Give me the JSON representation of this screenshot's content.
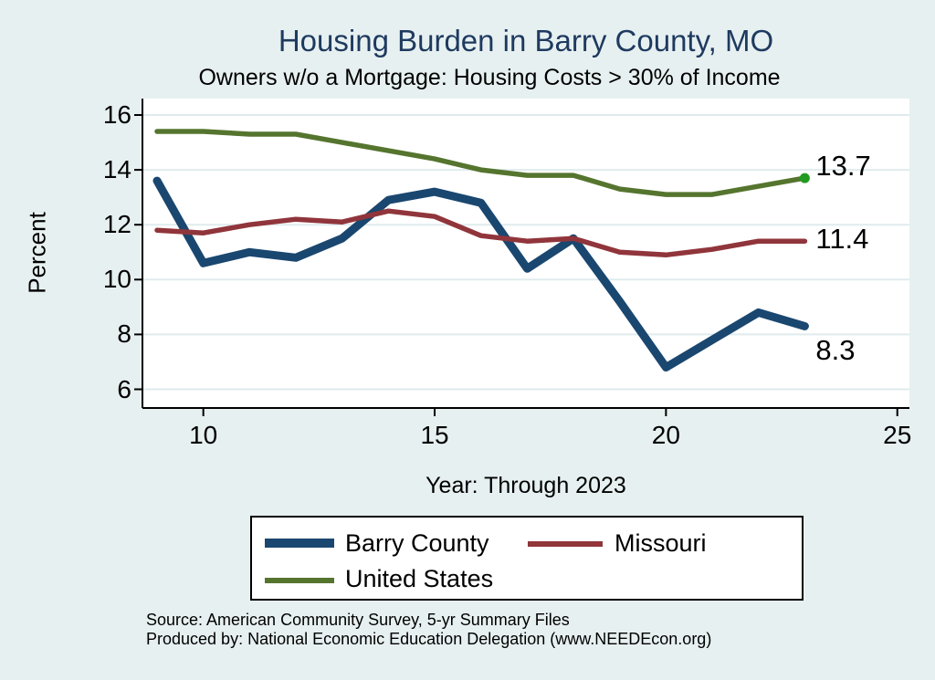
{
  "chart_data": {
    "type": "line",
    "title": "Housing Burden in Barry County, MO",
    "subtitle": "Owners w/o a Mortgage: Housing Costs > 30% of Income",
    "xlabel": "Year: Through 2023",
    "ylabel": "Percent",
    "x": [
      9,
      10,
      11,
      12,
      13,
      14,
      15,
      16,
      17,
      18,
      19,
      20,
      21,
      22,
      23
    ],
    "x_ticks": [
      10,
      15,
      20,
      25
    ],
    "y_ticks": [
      6,
      8,
      10,
      12,
      14,
      16
    ],
    "xlim": [
      8.7,
      25.3
    ],
    "ylim": [
      5.3,
      16.6
    ],
    "grid": "horizontal",
    "legend_position": "bottom-center",
    "series": [
      {
        "name": "Barry County",
        "color": "#1a476f",
        "line_width": 9,
        "values": [
          13.6,
          10.6,
          11.0,
          10.8,
          11.5,
          12.9,
          13.2,
          12.8,
          10.4,
          11.5,
          9.2,
          6.8,
          7.8,
          8.8,
          8.3
        ],
        "end_label": "8.3"
      },
      {
        "name": "Missouri",
        "color": "#90353b",
        "line_width": 5.5,
        "values": [
          11.8,
          11.7,
          12.0,
          12.2,
          12.1,
          12.5,
          12.3,
          11.6,
          11.4,
          11.5,
          11.0,
          10.9,
          11.1,
          11.4,
          11.4
        ],
        "end_label": "11.4"
      },
      {
        "name": "United States",
        "color": "#55752f",
        "line_width": 5.5,
        "values": [
          15.4,
          15.4,
          15.3,
          15.3,
          15.0,
          14.7,
          14.4,
          14.0,
          13.8,
          13.8,
          13.3,
          13.1,
          13.1,
          13.4,
          13.7
        ],
        "end_label": "13.7",
        "end_marker_color": "#219c21"
      }
    ],
    "colors": {
      "background": "#e7f0f1",
      "plot_background": "#ffffff",
      "gridline": "#e0ebee",
      "axis": "#000000",
      "title": "#1e3a5f"
    }
  },
  "footer": {
    "source": "Source: American Community Survey, 5-yr Summary Files",
    "produced_by": "Produced by: National Economic Education Delegation (www.NEEDEcon.org)"
  }
}
